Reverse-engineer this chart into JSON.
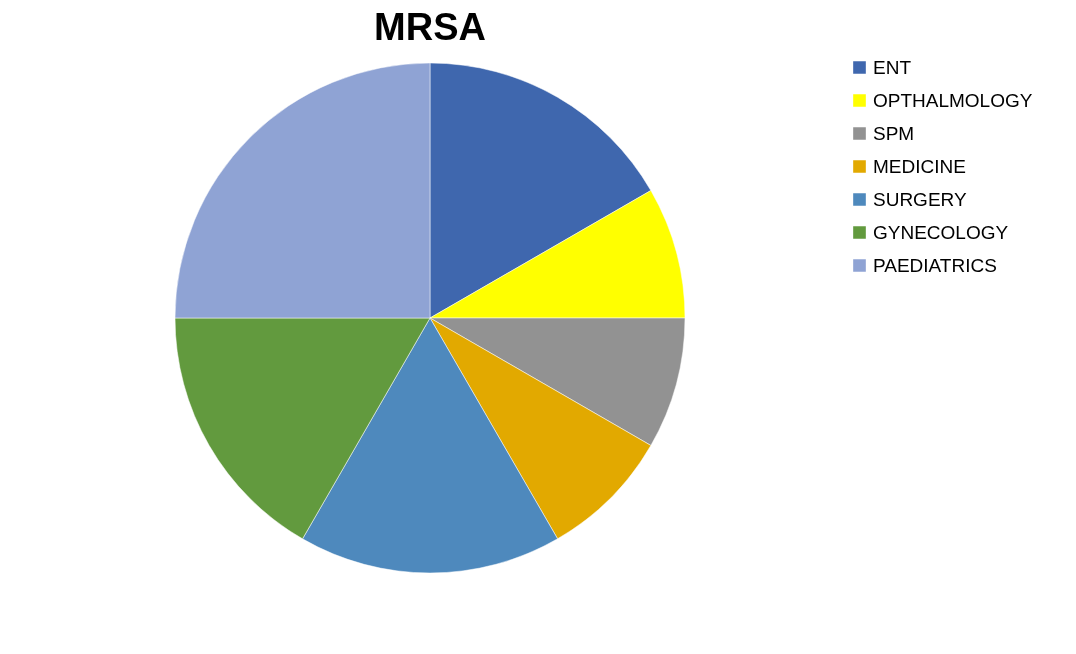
{
  "chart_data": {
    "type": "pie",
    "title": "MRSA",
    "categories": [
      "ENT",
      "OPTHALMOLOGY",
      "SPM",
      "MEDICINE",
      "SURGERY",
      "GYNECOLOGY",
      "PAEDIATRICS"
    ],
    "values": [
      16.67,
      8.33,
      8.33,
      8.33,
      16.67,
      16.67,
      25
    ],
    "colors": [
      "#3f67ae",
      "#ffff00",
      "#929292",
      "#e2a900",
      "#4e89bd",
      "#629a3e",
      "#8fa3d4"
    ],
    "legend": "right"
  }
}
